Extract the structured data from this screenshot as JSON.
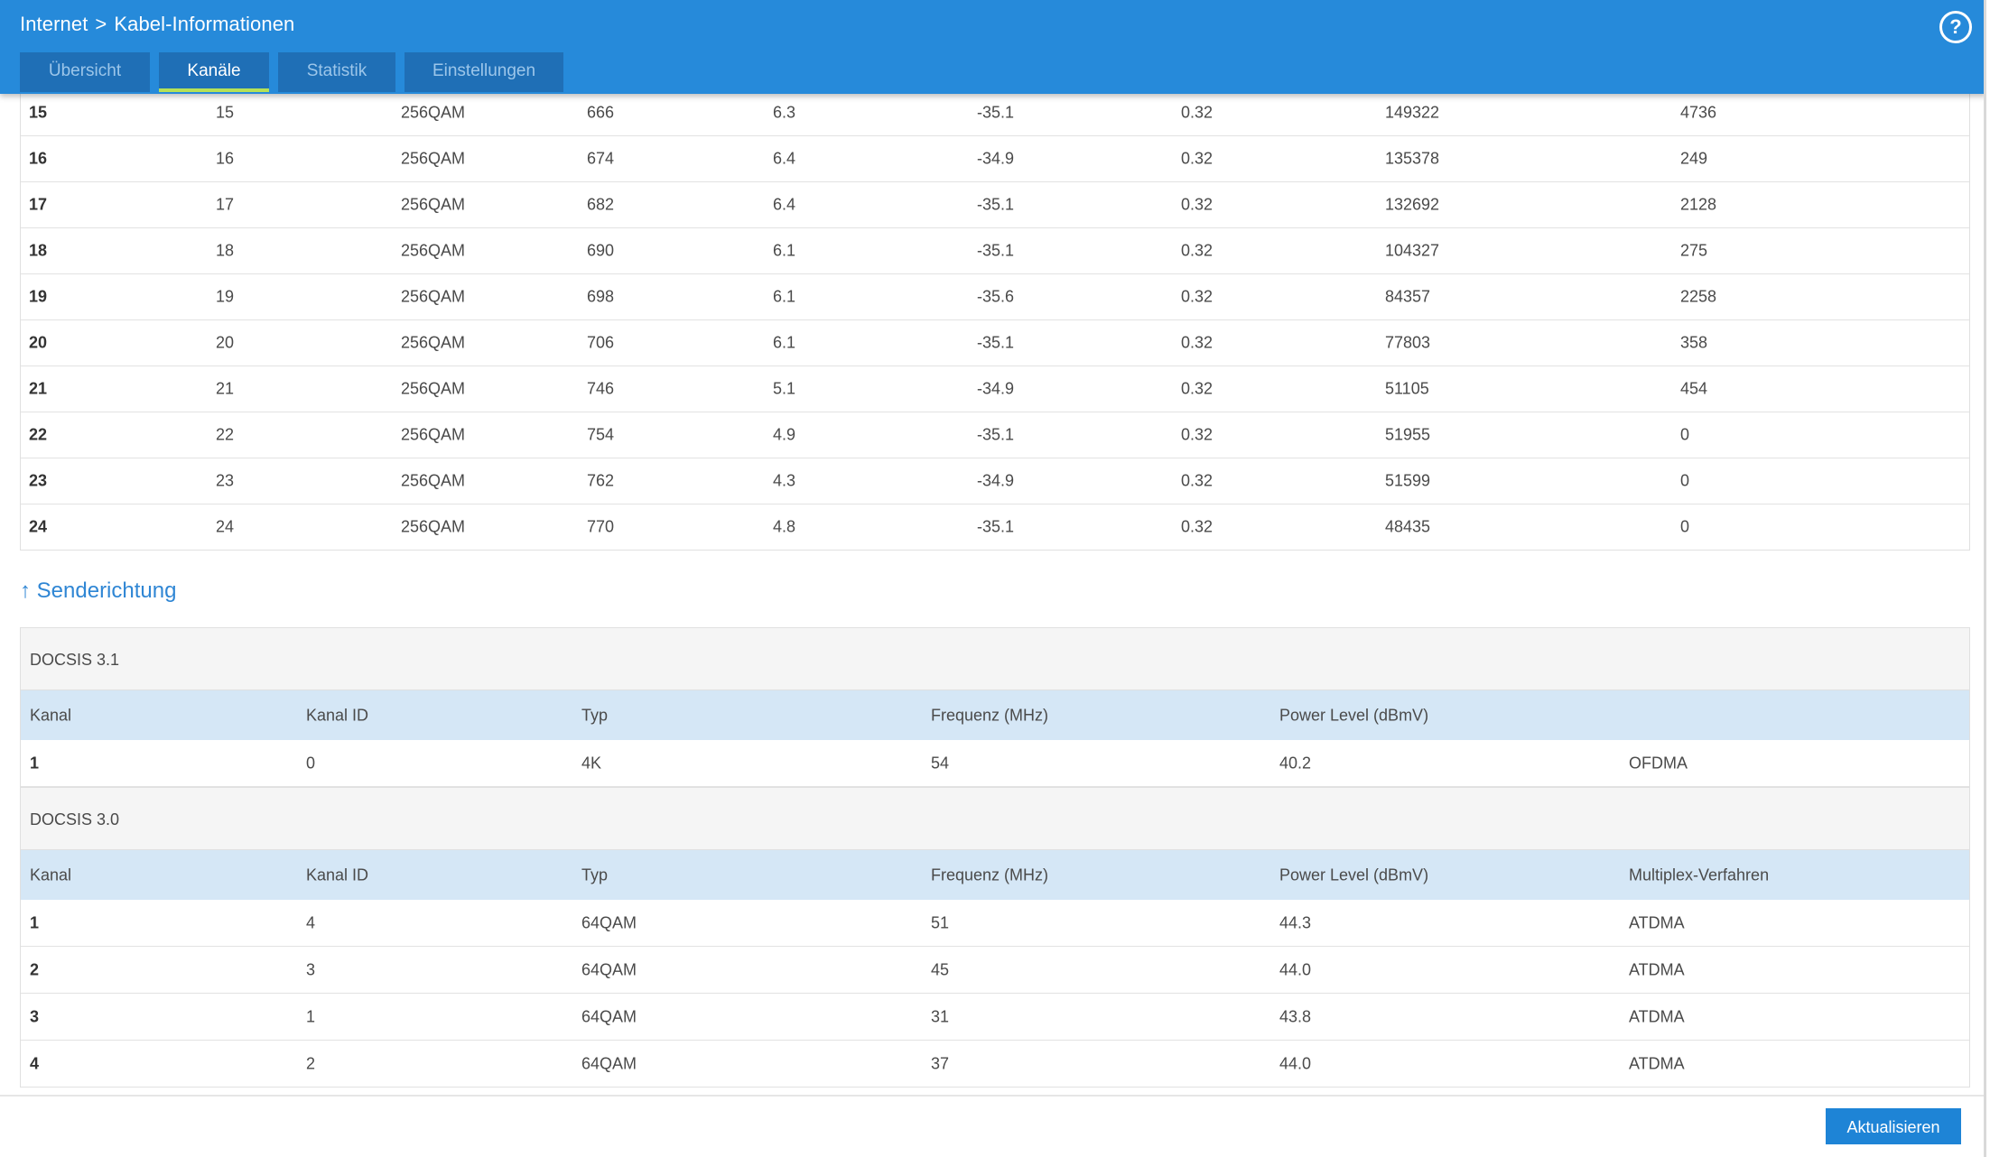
{
  "header": {
    "breadcrumb": {
      "parent": "Internet",
      "separator": ">",
      "current": "Kabel-Informationen"
    },
    "help_icon": "?",
    "tabs": [
      {
        "label": "Übersicht",
        "active": false
      },
      {
        "label": "Kanäle",
        "active": true
      },
      {
        "label": "Statistik",
        "active": false
      },
      {
        "label": "Einstellungen",
        "active": false
      }
    ]
  },
  "downstream": {
    "rows": [
      [
        "15",
        "15",
        "256QAM",
        "666",
        "6.3",
        "-35.1",
        "0.32",
        "149322",
        "4736"
      ],
      [
        "16",
        "16",
        "256QAM",
        "674",
        "6.4",
        "-34.9",
        "0.32",
        "135378",
        "249"
      ],
      [
        "17",
        "17",
        "256QAM",
        "682",
        "6.4",
        "-35.1",
        "0.32",
        "132692",
        "2128"
      ],
      [
        "18",
        "18",
        "256QAM",
        "690",
        "6.1",
        "-35.1",
        "0.32",
        "104327",
        "275"
      ],
      [
        "19",
        "19",
        "256QAM",
        "698",
        "6.1",
        "-35.6",
        "0.32",
        "84357",
        "2258"
      ],
      [
        "20",
        "20",
        "256QAM",
        "706",
        "6.1",
        "-35.1",
        "0.32",
        "77803",
        "358"
      ],
      [
        "21",
        "21",
        "256QAM",
        "746",
        "5.1",
        "-34.9",
        "0.32",
        "51105",
        "454"
      ],
      [
        "22",
        "22",
        "256QAM",
        "754",
        "4.9",
        "-35.1",
        "0.32",
        "51955",
        "0"
      ],
      [
        "23",
        "23",
        "256QAM",
        "762",
        "4.3",
        "-34.9",
        "0.32",
        "51599",
        "0"
      ],
      [
        "24",
        "24",
        "256QAM",
        "770",
        "4.8",
        "-35.1",
        "0.32",
        "48435",
        "0"
      ]
    ]
  },
  "upstream": {
    "title": "↑ Senderichtung",
    "docsis31": {
      "label": "DOCSIS 3.1",
      "headers": [
        "Kanal",
        "Kanal ID",
        "Typ",
        "Frequenz (MHz)",
        "Power Level (dBmV)",
        ""
      ],
      "rows": [
        [
          "1",
          "0",
          "4K",
          "54",
          "40.2",
          "OFDMA"
        ]
      ]
    },
    "docsis30": {
      "label": "DOCSIS 3.0",
      "headers": [
        "Kanal",
        "Kanal ID",
        "Typ",
        "Frequenz (MHz)",
        "Power Level (dBmV)",
        "Multiplex-Verfahren"
      ],
      "rows": [
        [
          "1",
          "4",
          "64QAM",
          "51",
          "44.3",
          "ATDMA"
        ],
        [
          "2",
          "3",
          "64QAM",
          "45",
          "44.0",
          "ATDMA"
        ],
        [
          "3",
          "1",
          "64QAM",
          "31",
          "43.8",
          "ATDMA"
        ],
        [
          "4",
          "2",
          "64QAM",
          "37",
          "44.0",
          "ATDMA"
        ]
      ]
    }
  },
  "footer": {
    "refresh_label": "Aktualisieren"
  },
  "colors": {
    "header_bg": "#268ada",
    "tab_bg": "#1f6fb6",
    "tab_active_underline": "#b5e157",
    "table_head_bg": "#d5e7f6",
    "accent": "#2f86d4"
  }
}
